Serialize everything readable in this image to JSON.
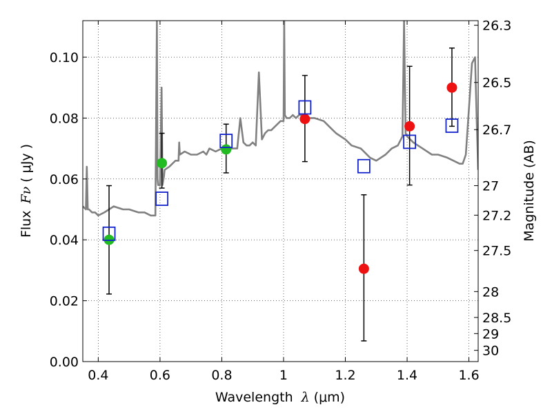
{
  "chart_data": {
    "type": "scatter",
    "xlabel": "Wavelength",
    "xlabel_symbol": "λ",
    "xlabel_unit": "(μm)",
    "ylabel": "Flux",
    "ylabel_symbol": "Fν",
    "ylabel_unit": "( μJy )",
    "right_ylabel": "Magnitude (AB)",
    "xlim": [
      0.35,
      1.63
    ],
    "ylim": [
      0.0,
      0.112
    ],
    "grid": true,
    "x_ticks": [
      0.4,
      0.6,
      0.8,
      1.0,
      1.2,
      1.4,
      1.6
    ],
    "x_tick_labels": [
      "0.4",
      "0.6",
      "0.8",
      "1",
      "1.2",
      "1.4",
      "1.6"
    ],
    "y_ticks": [
      0.0,
      0.02,
      0.04,
      0.06,
      0.08,
      0.1
    ],
    "y_tick_labels": [
      "0.00",
      "0.02",
      "0.04",
      "0.06",
      "0.08",
      "0.10"
    ],
    "right_axis": {
      "labels": [
        "26.3",
        "26.5",
        "26.7",
        "27",
        "27.2",
        "27.5",
        "28",
        "28.5",
        "29",
        "30"
      ],
      "flux_positions": [
        0.1105,
        0.0917,
        0.0762,
        0.0578,
        0.0481,
        0.0365,
        0.023,
        0.0145,
        0.0092,
        0.0037
      ]
    },
    "series": [
      {
        "marker": "circle",
        "color": "#22bb22",
        "points": [
          {
            "x": 0.435,
            "y": 0.04,
            "err_low": 0.0178,
            "err_high": 0.0178
          },
          {
            "x": 0.606,
            "y": 0.0652,
            "err_low": 0.0082,
            "err_high": 0.0098
          },
          {
            "x": 0.814,
            "y": 0.0697,
            "err_low": 0.0077,
            "err_high": 0.0083
          }
        ]
      },
      {
        "marker": "circle",
        "color": "#ee1111",
        "points": [
          {
            "x": 1.069,
            "y": 0.0797,
            "err_low": 0.014,
            "err_high": 0.0143
          },
          {
            "x": 1.26,
            "y": 0.0305,
            "err_low": 0.0237,
            "err_high": 0.0243
          },
          {
            "x": 1.408,
            "y": 0.0773,
            "err_low": 0.0193,
            "err_high": 0.0197
          },
          {
            "x": 1.545,
            "y": 0.09,
            "err_low": 0.0127,
            "err_high": 0.013
          }
        ]
      },
      {
        "marker": "open-square",
        "color": "#1122cc",
        "points": [
          {
            "x": 0.435,
            "y": 0.042
          },
          {
            "x": 0.606,
            "y": 0.0535
          },
          {
            "x": 0.814,
            "y": 0.0725
          },
          {
            "x": 1.069,
            "y": 0.0835
          },
          {
            "x": 1.26,
            "y": 0.0642
          },
          {
            "x": 1.408,
            "y": 0.0722
          },
          {
            "x": 1.545,
            "y": 0.0775
          }
        ]
      }
    ],
    "spectrum": {
      "color": "#808080",
      "x": [
        0.35,
        0.36,
        0.363,
        0.366,
        0.37,
        0.38,
        0.39,
        0.4,
        0.42,
        0.45,
        0.48,
        0.5,
        0.53,
        0.55,
        0.57,
        0.585,
        0.59,
        0.592,
        0.594,
        0.6,
        0.605,
        0.608,
        0.613,
        0.615,
        0.63,
        0.65,
        0.66,
        0.662,
        0.664,
        0.68,
        0.7,
        0.72,
        0.74,
        0.75,
        0.76,
        0.78,
        0.8,
        0.83,
        0.85,
        0.86,
        0.87,
        0.88,
        0.89,
        0.9,
        0.91,
        0.92,
        0.93,
        0.94,
        0.95,
        0.96,
        0.97,
        0.98,
        0.99,
        1.0,
        1.002,
        1.004,
        1.01,
        1.02,
        1.03,
        1.04,
        1.05,
        1.06,
        1.08,
        1.1,
        1.13,
        1.15,
        1.17,
        1.2,
        1.22,
        1.25,
        1.28,
        1.3,
        1.33,
        1.35,
        1.37,
        1.385,
        1.39,
        1.395,
        1.4,
        1.42,
        1.45,
        1.48,
        1.5,
        1.53,
        1.55,
        1.57,
        1.58,
        1.59,
        1.6,
        1.61,
        1.62,
        1.625,
        1.63
      ],
      "y": [
        0.051,
        0.05,
        0.064,
        0.05,
        0.05,
        0.049,
        0.049,
        0.048,
        0.049,
        0.051,
        0.05,
        0.05,
        0.049,
        0.049,
        0.048,
        0.048,
        0.112,
        0.06,
        0.058,
        0.058,
        0.09,
        0.058,
        0.061,
        0.063,
        0.064,
        0.066,
        0.066,
        0.072,
        0.068,
        0.069,
        0.068,
        0.068,
        0.069,
        0.068,
        0.07,
        0.069,
        0.07,
        0.07,
        0.07,
        0.08,
        0.072,
        0.071,
        0.071,
        0.072,
        0.071,
        0.095,
        0.073,
        0.075,
        0.076,
        0.076,
        0.077,
        0.078,
        0.079,
        0.079,
        0.112,
        0.081,
        0.08,
        0.08,
        0.081,
        0.08,
        0.081,
        0.081,
        0.08,
        0.08,
        0.079,
        0.077,
        0.075,
        0.073,
        0.071,
        0.07,
        0.067,
        0.066,
        0.068,
        0.07,
        0.071,
        0.074,
        0.112,
        0.075,
        0.074,
        0.072,
        0.07,
        0.068,
        0.068,
        0.067,
        0.066,
        0.065,
        0.065,
        0.068,
        0.083,
        0.098,
        0.1,
        0.08,
        0.063
      ]
    }
  }
}
